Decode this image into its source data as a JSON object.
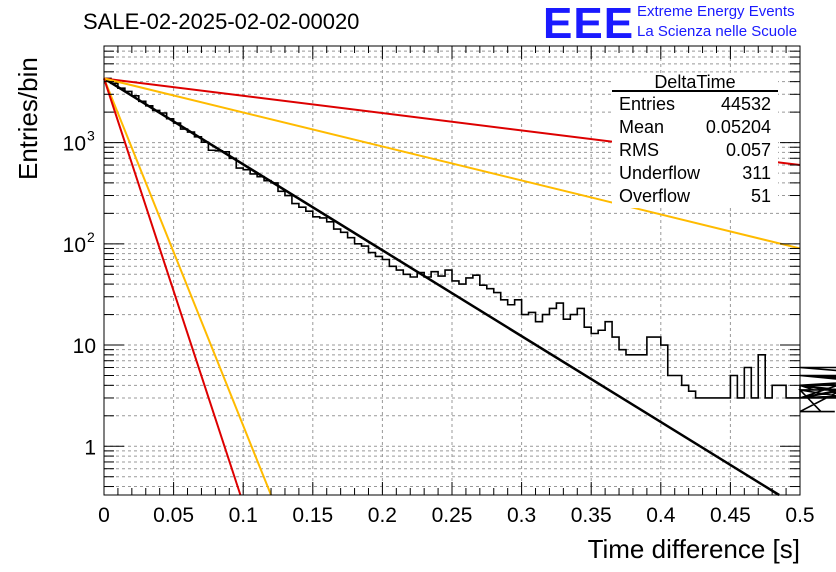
{
  "header": {
    "title": "SALE-02-2025-02-02-00020",
    "logo_text": "EEE",
    "logo_line1": "Extreme Energy Events",
    "logo_line2": "La Scienza nelle Scuole"
  },
  "chart_data": {
    "type": "line",
    "xlabel": "Time difference [s]",
    "ylabel": "Entries/bin",
    "xlim": [
      0,
      0.5
    ],
    "ylim": [
      0.33,
      9000
    ],
    "yscale": "log",
    "grid": true,
    "x_ticks": [
      "0",
      "0.05",
      "0.1",
      "0.15",
      "0.2",
      "0.25",
      "0.3",
      "0.35",
      "0.4",
      "0.45",
      "0.5"
    ],
    "y_tick_labels": [
      {
        "value": 1,
        "base": "1",
        "exp": ""
      },
      {
        "value": 10,
        "base": "10",
        "exp": ""
      },
      {
        "value": 100,
        "base": "10",
        "exp": "2"
      },
      {
        "value": 1000,
        "base": "10",
        "exp": "3"
      }
    ],
    "stats_box": {
      "title": "DeltaTime",
      "rows": [
        {
          "label": "Entries",
          "value": "44532"
        },
        {
          "label": "Mean",
          "value": "0.05204"
        },
        {
          "label": "RMS",
          "value": "0.057"
        },
        {
          "label": "Underflow",
          "value": "311"
        },
        {
          "label": "Overflow",
          "value": "51"
        }
      ]
    },
    "histogram": {
      "bin_width": 0.005,
      "counts": [
        4300,
        3850,
        3450,
        3200,
        2900,
        2560,
        2310,
        2080,
        1960,
        1720,
        1560,
        1360,
        1270,
        1140,
        1010,
        840,
        830,
        810,
        700,
        560,
        540,
        490,
        460,
        420,
        400,
        330,
        300,
        250,
        230,
        210,
        185,
        180,
        165,
        140,
        130,
        115,
        100,
        95,
        82,
        75,
        70,
        60,
        55,
        50,
        47,
        52,
        47,
        53,
        48,
        55,
        43,
        40,
        46,
        49,
        39,
        36,
        33,
        28,
        25,
        28,
        20,
        21,
        17,
        20,
        23,
        26,
        18,
        20,
        23,
        15,
        13,
        14,
        17,
        12,
        9,
        8,
        8,
        8,
        12,
        12,
        10,
        5,
        5,
        4,
        3.5,
        3,
        3,
        3,
        3,
        3,
        5,
        3,
        6,
        3,
        8,
        3,
        4,
        4,
        3,
        3,
        4,
        4,
        3.6,
        2.2,
        2.2,
        2.2,
        3.6,
        3,
        3,
        4,
        4,
        3,
        3,
        6,
        5,
        4,
        3,
        3,
        3,
        5,
        4,
        4,
        5,
        5,
        5,
        5,
        5,
        4,
        5,
        5,
        5,
        4,
        4,
        5,
        5,
        3,
        4,
        4,
        5,
        4
      ]
    },
    "series": [
      {
        "color": "#000000",
        "x": [
          0,
          0.485
        ],
        "y": [
          4300,
          0.33
        ]
      },
      {
        "color": "#dd0000",
        "x": [
          0,
          0.5
        ],
        "y": [
          4300,
          600
        ]
      },
      {
        "color": "#ffbb00",
        "x": [
          0,
          0.5
        ],
        "y": [
          4300,
          90
        ]
      },
      {
        "color": "#ffbb00",
        "x": [
          0,
          0.12
        ],
        "y": [
          4300,
          0.33
        ]
      },
      {
        "color": "#dd0000",
        "x": [
          0,
          0.098
        ],
        "y": [
          4300,
          0.33
        ]
      }
    ]
  }
}
